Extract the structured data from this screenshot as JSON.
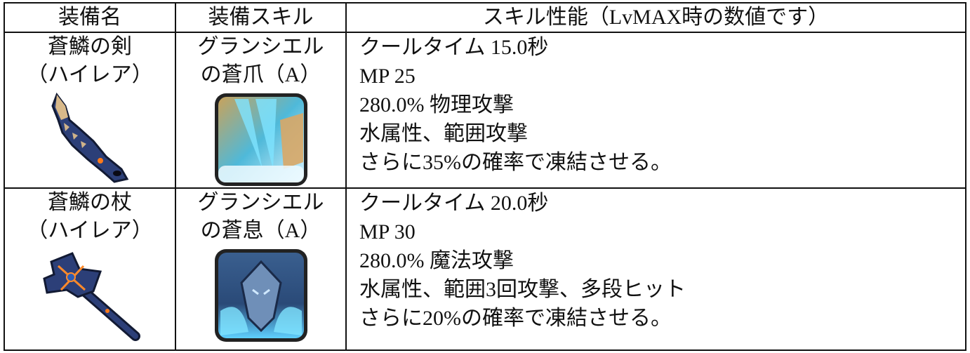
{
  "table": {
    "headers": [
      "装備名",
      "装備スキル",
      "スキル性能（LvMAX時の数値です）"
    ],
    "rows": [
      {
        "equipment_name": "蒼鱗の剣",
        "rarity": "（ハイレア）",
        "equipment_icon": "blue-scale-sword-icon",
        "skill_name_line1": "グランシエル",
        "skill_name_line2": "の蒼爪（A）",
        "skill_icon": "blue-claw-skill-icon",
        "performance": [
          "クールタイム  15.0秒",
          "MP 25",
          "280.0%  物理攻撃",
          "水属性、範囲攻撃",
          "さらに35%の確率で凍結させる。"
        ]
      },
      {
        "equipment_name": "蒼鱗の杖",
        "rarity": "（ハイレア）",
        "equipment_icon": "blue-scale-staff-icon",
        "skill_name_line1": "グランシエル",
        "skill_name_line2": "の蒼息（A）",
        "skill_icon": "blue-breath-skill-icon",
        "performance": [
          "クールタイム  20.0秒",
          "MP 30",
          "280.0%  魔法攻撃",
          "水属性、範囲3回攻撃、多段ヒット",
          "さらに20%の確率で凍結させる。"
        ]
      }
    ]
  }
}
